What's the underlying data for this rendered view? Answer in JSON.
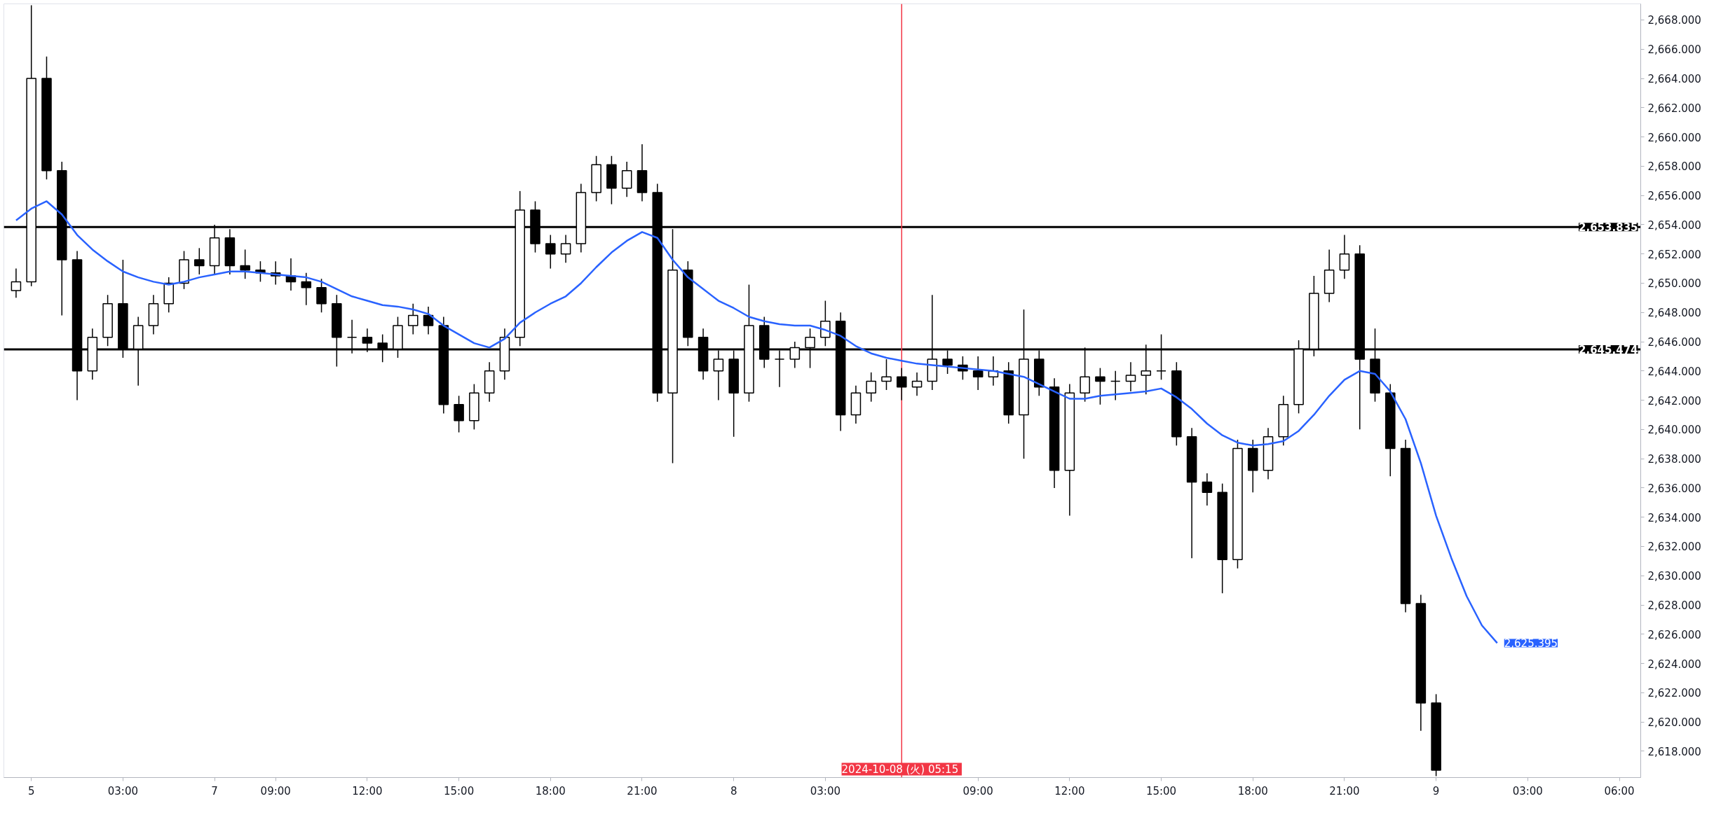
{
  "chart_data": {
    "type": "candlestick",
    "color": "#000000",
    "categories": [
      null,
      "5",
      null,
      null,
      null,
      null,
      null,
      "03:00",
      null,
      null,
      null,
      null,
      null,
      "7",
      null,
      null,
      null,
      "09:00",
      null,
      null,
      null,
      null,
      null,
      "12:00",
      null,
      null,
      null,
      null,
      null,
      "15:00",
      null,
      null,
      null,
      null,
      null,
      "18:00",
      null,
      null,
      null,
      null,
      null,
      "21:00",
      null,
      null,
      null,
      null,
      null,
      "8",
      null,
      null,
      null,
      null,
      null,
      "03:00",
      null,
      null,
      null,
      null,
      "2024-10-08 (火)  05:15",
      null,
      null,
      null,
      null,
      "09:00",
      null,
      null,
      null,
      null,
      null,
      "12:00",
      null,
      null,
      null,
      null,
      null,
      "15:00",
      null,
      null,
      null,
      null,
      null,
      "18:00",
      null,
      null,
      null,
      null,
      null,
      "21:00",
      null,
      null,
      null,
      null,
      null,
      "9",
      null,
      null,
      null,
      null,
      null,
      "03:00",
      null,
      null,
      null,
      null,
      null,
      "06:00",
      null
    ],
    "ohlc": [
      [
        2649.5,
        2651.0,
        2649.0,
        2650.1
      ],
      [
        2650.1,
        2669.0,
        2649.8,
        2664.0
      ],
      [
        2664.0,
        2665.5,
        2657.1,
        2657.7
      ],
      [
        2657.7,
        2658.3,
        2647.8,
        2651.6
      ],
      [
        2651.6,
        2652.2,
        2642.0,
        2644.0
      ],
      [
        2644.0,
        2646.9,
        2643.4,
        2646.3
      ],
      [
        2646.3,
        2649.2,
        2645.7,
        2648.6
      ],
      [
        2648.6,
        2651.6,
        2644.9,
        2645.5
      ],
      [
        2645.5,
        2647.7,
        2643.0,
        2647.1
      ],
      [
        2647.1,
        2649.2,
        2646.5,
        2648.6
      ],
      [
        2648.6,
        2650.4,
        2648.0,
        2650.0
      ],
      [
        2650.0,
        2652.2,
        2649.6,
        2651.6
      ],
      [
        2651.6,
        2652.4,
        2650.6,
        2651.2
      ],
      [
        2651.2,
        2654.0,
        2650.6,
        2653.1
      ],
      [
        2653.1,
        2653.7,
        2650.6,
        2651.2
      ],
      [
        2651.2,
        2652.3,
        2650.3,
        2650.9
      ],
      [
        2650.9,
        2651.5,
        2650.1,
        2650.7
      ],
      [
        2650.7,
        2651.5,
        2649.9,
        2650.5
      ],
      [
        2650.5,
        2651.7,
        2649.5,
        2650.1
      ],
      [
        2650.1,
        2650.7,
        2648.5,
        2649.7
      ],
      [
        2649.7,
        2650.3,
        2648.0,
        2648.6
      ],
      [
        2648.6,
        2649.2,
        2644.3,
        2646.3
      ],
      [
        2646.3,
        2647.5,
        2645.2,
        2646.3
      ],
      [
        2646.3,
        2646.9,
        2645.3,
        2645.9
      ],
      [
        2645.9,
        2646.5,
        2644.6,
        2645.5
      ],
      [
        2645.5,
        2647.7,
        2644.9,
        2647.1
      ],
      [
        2647.1,
        2648.6,
        2646.5,
        2647.8
      ],
      [
        2647.8,
        2648.4,
        2646.5,
        2647.1
      ],
      [
        2647.1,
        2647.7,
        2641.1,
        2641.7
      ],
      [
        2641.7,
        2642.3,
        2639.8,
        2640.6
      ],
      [
        2640.6,
        2643.1,
        2640.0,
        2642.5
      ],
      [
        2642.5,
        2644.6,
        2641.9,
        2644.0
      ],
      [
        2644.0,
        2646.9,
        2643.4,
        2646.3
      ],
      [
        2646.3,
        2656.3,
        2645.7,
        2655.0
      ],
      [
        2655.0,
        2655.6,
        2652.1,
        2652.7
      ],
      [
        2652.7,
        2653.3,
        2651.0,
        2652.0
      ],
      [
        2652.0,
        2653.3,
        2651.4,
        2652.7
      ],
      [
        2652.7,
        2656.8,
        2652.1,
        2656.2
      ],
      [
        2656.2,
        2658.7,
        2655.6,
        2658.1
      ],
      [
        2658.1,
        2658.7,
        2655.4,
        2656.5
      ],
      [
        2656.5,
        2658.3,
        2655.9,
        2657.7
      ],
      [
        2657.7,
        2659.5,
        2655.6,
        2656.2
      ],
      [
        2656.2,
        2656.8,
        2641.9,
        2642.5
      ],
      [
        2642.5,
        2653.7,
        2637.7,
        2650.9
      ],
      [
        2650.9,
        2651.5,
        2645.7,
        2646.3
      ],
      [
        2646.3,
        2646.9,
        2643.4,
        2644.0
      ],
      [
        2644.0,
        2645.4,
        2642.0,
        2644.8
      ],
      [
        2644.8,
        2645.4,
        2639.5,
        2642.5
      ],
      [
        2642.5,
        2649.9,
        2641.9,
        2647.1
      ],
      [
        2647.1,
        2647.7,
        2644.2,
        2644.8
      ],
      [
        2644.8,
        2645.4,
        2642.9,
        2644.8
      ],
      [
        2644.8,
        2646.0,
        2644.2,
        2645.6
      ],
      [
        2645.6,
        2646.9,
        2644.2,
        2646.3
      ],
      [
        2646.3,
        2648.8,
        2645.7,
        2647.4
      ],
      [
        2647.4,
        2648.0,
        2639.9,
        2641.0
      ],
      [
        2641.0,
        2643.0,
        2640.4,
        2642.5
      ],
      [
        2642.5,
        2643.9,
        2641.9,
        2643.3
      ],
      [
        2643.3,
        2644.8,
        2642.7,
        2643.6
      ],
      [
        2643.6,
        2644.2,
        2642.0,
        2642.9
      ],
      [
        2642.9,
        2643.9,
        2642.3,
        2643.3
      ],
      [
        2643.3,
        2649.2,
        2642.7,
        2644.8
      ],
      [
        2644.8,
        2645.4,
        2643.8,
        2644.4
      ],
      [
        2644.4,
        2645.0,
        2643.4,
        2644.0
      ],
      [
        2644.0,
        2645.0,
        2642.7,
        2643.6
      ],
      [
        2643.6,
        2645.0,
        2643.0,
        2644.0
      ],
      [
        2644.0,
        2644.6,
        2640.4,
        2641.0
      ],
      [
        2641.0,
        2648.2,
        2638.0,
        2644.8
      ],
      [
        2644.8,
        2645.4,
        2642.3,
        2642.9
      ],
      [
        2642.9,
        2643.5,
        2636.0,
        2637.2
      ],
      [
        2637.2,
        2643.1,
        2634.1,
        2642.5
      ],
      [
        2642.5,
        2645.6,
        2641.9,
        2643.6
      ],
      [
        2643.6,
        2644.2,
        2641.7,
        2643.3
      ],
      [
        2643.3,
        2644.0,
        2642.0,
        2643.3
      ],
      [
        2643.3,
        2644.6,
        2642.6,
        2643.7
      ],
      [
        2643.7,
        2645.8,
        2642.4,
        2644.0
      ],
      [
        2644.0,
        2646.5,
        2643.4,
        2644.0
      ],
      [
        2644.0,
        2644.6,
        2638.9,
        2639.5
      ],
      [
        2639.5,
        2640.1,
        2631.2,
        2636.4
      ],
      [
        2636.4,
        2637.0,
        2634.8,
        2635.7
      ],
      [
        2635.7,
        2636.3,
        2628.8,
        2631.1
      ],
      [
        2631.1,
        2639.3,
        2630.5,
        2638.7
      ],
      [
        2638.7,
        2639.3,
        2635.7,
        2637.2
      ],
      [
        2637.2,
        2640.1,
        2636.6,
        2639.5
      ],
      [
        2639.5,
        2642.3,
        2638.9,
        2641.7
      ],
      [
        2641.7,
        2646.1,
        2641.1,
        2645.5
      ],
      [
        2645.5,
        2650.5,
        2645.0,
        2649.3
      ],
      [
        2649.3,
        2652.3,
        2648.7,
        2650.9
      ],
      [
        2650.9,
        2653.3,
        2650.3,
        2652.0
      ],
      [
        2652.0,
        2652.6,
        2640.0,
        2644.8
      ],
      [
        2644.8,
        2646.9,
        2641.9,
        2642.5
      ],
      [
        2642.5,
        2643.1,
        2636.8,
        2638.7
      ],
      [
        2638.7,
        2639.3,
        2627.5,
        2628.1
      ],
      [
        2628.1,
        2628.7,
        2619.4,
        2621.3
      ],
      [
        2621.3,
        2621.9,
        2616.3,
        2616.7
      ],
      null,
      null,
      null,
      null,
      null,
      null,
      null,
      null,
      null,
      null,
      null,
      null,
      null
    ],
    "series": [
      {
        "type": "line",
        "color": "#2962ff",
        "values": [
          2654.3,
          2655.1,
          2655.6,
          2654.7,
          2653.3,
          2652.3,
          2651.5,
          2650.8,
          2650.4,
          2650.1,
          2649.9,
          2650.1,
          2650.4,
          2650.6,
          2650.8,
          2650.8,
          2650.7,
          2650.6,
          2650.5,
          2650.4,
          2650.1,
          2649.6,
          2649.1,
          2648.8,
          2648.5,
          2648.4,
          2648.2,
          2647.9,
          2647.1,
          2646.5,
          2645.9,
          2645.6,
          2646.2,
          2647.3,
          2648.0,
          2648.6,
          2649.1,
          2650.0,
          2651.1,
          2652.1,
          2652.9,
          2653.5,
          2653.1,
          2651.6,
          2650.4,
          2649.6,
          2648.8,
          2648.3,
          2647.7,
          2647.4,
          2647.2,
          2647.1,
          2647.1,
          2646.8,
          2646.4,
          2645.7,
          2645.2,
          2644.9,
          2644.7,
          2644.5,
          2644.4,
          2644.3,
          2644.2,
          2644.1,
          2644.0,
          2643.8,
          2643.6,
          2643.1,
          2642.6,
          2642.1,
          2642.1,
          2642.3,
          2642.4,
          2642.5,
          2642.6,
          2642.8,
          2642.2,
          2641.4,
          2640.4,
          2639.6,
          2639.1,
          2638.9,
          2639.0,
          2639.2,
          2639.9,
          2641.0,
          2642.3,
          2643.4,
          2644.0,
          2643.8,
          2642.6,
          2640.7,
          2637.7,
          2634.1,
          2631.2,
          2628.6,
          2626.6,
          2625.395,
          null,
          null,
          null,
          null,
          null,
          null,
          null,
          null,
          null
        ],
        "value_labels": [
          null,
          null,
          null,
          null,
          null,
          null,
          null,
          null,
          null,
          null,
          null,
          null,
          null,
          null,
          null,
          null,
          null,
          null,
          null,
          null,
          null,
          null,
          null,
          null,
          null,
          null,
          null,
          null,
          null,
          null,
          null,
          null,
          null,
          null,
          null,
          null,
          null,
          null,
          null,
          null,
          null,
          null,
          null,
          null,
          null,
          null,
          null,
          null,
          null,
          null,
          null,
          null,
          null,
          null,
          null,
          null,
          null,
          null,
          null,
          null,
          null,
          null,
          null,
          null,
          null,
          null,
          null,
          null,
          null,
          null,
          null,
          null,
          null,
          null,
          null,
          null,
          null,
          null,
          null,
          null,
          null,
          null,
          null,
          null,
          null,
          null,
          null,
          null,
          null,
          null,
          null,
          null,
          null,
          null,
          null,
          null,
          null,
          "2,625.395",
          null,
          null,
          null,
          null,
          null,
          null,
          null,
          null,
          null
        ]
      }
    ],
    "ylim": [
      2616.2,
      2669.1
    ],
    "yticks": [
      {
        "value": 2618,
        "label": "2,618.000"
      },
      {
        "value": 2620,
        "label": "2,620.000"
      },
      {
        "value": 2622,
        "label": "2,622.000"
      },
      {
        "value": 2624,
        "label": "2,624.000"
      },
      {
        "value": 2626,
        "label": "2,626.000"
      },
      {
        "value": 2628,
        "label": "2,628.000"
      },
      {
        "value": 2630,
        "label": "2,630.000"
      },
      {
        "value": 2632,
        "label": "2,632.000"
      },
      {
        "value": 2634,
        "label": "2,634.000"
      },
      {
        "value": 2636,
        "label": "2,636.000"
      },
      {
        "value": 2638,
        "label": "2,638.000"
      },
      {
        "value": 2640,
        "label": "2,640.000"
      },
      {
        "value": 2642,
        "label": "2,642.000"
      },
      {
        "value": 2644,
        "label": "2,644.000"
      },
      {
        "value": 2646,
        "label": "2,646.000"
      },
      {
        "value": 2648,
        "label": "2,648.000"
      },
      {
        "value": 2650,
        "label": "2,650.000"
      },
      {
        "value": 2652,
        "label": "2,652.000"
      },
      {
        "value": 2654,
        "label": "2,654.000"
      },
      {
        "value": 2656,
        "label": "2,656.000"
      },
      {
        "value": 2658,
        "label": "2,658.000"
      },
      {
        "value": 2660,
        "label": "2,660.000"
      },
      {
        "value": 2662,
        "label": "2,662.000"
      },
      {
        "value": 2664,
        "label": "2,664.000"
      },
      {
        "value": 2666,
        "label": "2,666.000"
      },
      {
        "value": 2668,
        "label": "2,668.000"
      }
    ],
    "ref_lines": [
      {
        "axis": "y",
        "value": 2653.835,
        "label": "2,653.835",
        "color": "#000000"
      },
      {
        "axis": "y",
        "value": 2645.474,
        "label": "2,645.474",
        "color": "#000000"
      },
      {
        "axis": "x",
        "value": "2024-10-08 (火)  05:15",
        "color": "#f23645"
      }
    ],
    "grid": false
  }
}
